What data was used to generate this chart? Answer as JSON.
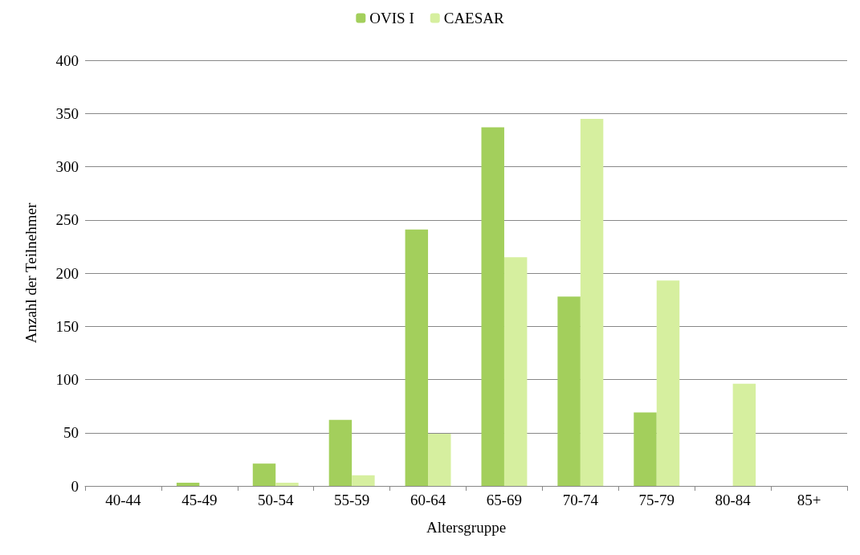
{
  "chart_data": {
    "type": "bar",
    "xlabel": "Altersgruppe",
    "ylabel": "Anzahl der Teilnehmer",
    "categories": [
      "40-44",
      "45-49",
      "50-54",
      "55-59",
      "60-64",
      "65-69",
      "70-74",
      "75-79",
      "80-84",
      "85+"
    ],
    "series": [
      {
        "name": "OVIS I",
        "color": "#a3cf5c",
        "values": [
          0,
          3,
          21,
          62,
          241,
          337,
          178,
          69,
          0,
          0
        ]
      },
      {
        "name": "CAESAR",
        "color": "#d6ef9f",
        "values": [
          0,
          0,
          3,
          10,
          49,
          215,
          345,
          193,
          96,
          0
        ]
      }
    ],
    "ylim": [
      0,
      400
    ],
    "yticks": [
      0,
      50,
      100,
      150,
      200,
      250,
      300,
      350,
      400
    ],
    "grid": "y",
    "legend": "top"
  }
}
